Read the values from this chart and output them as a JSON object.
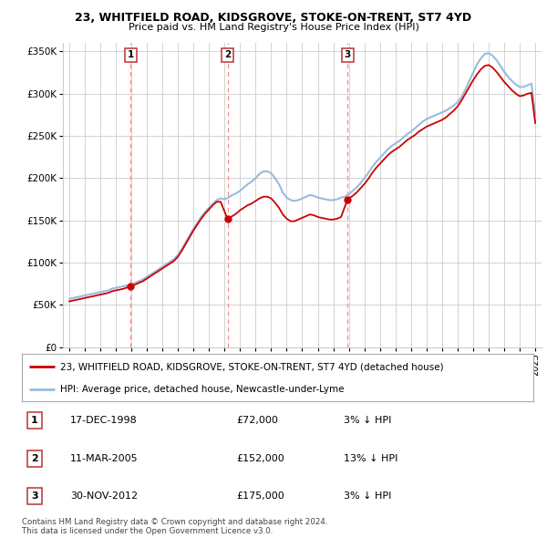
{
  "title": "23, WHITFIELD ROAD, KIDSGROVE, STOKE-ON-TRENT, ST7 4YD",
  "subtitle": "Price paid vs. HM Land Registry's House Price Index (HPI)",
  "ylabel_ticks": [
    "£0",
    "£50K",
    "£100K",
    "£150K",
    "£200K",
    "£250K",
    "£300K",
    "£350K"
  ],
  "ytick_values": [
    0,
    50000,
    100000,
    150000,
    200000,
    250000,
    300000,
    350000
  ],
  "ylim": [
    0,
    360000
  ],
  "sale_prices": [
    72000,
    152000,
    175000
  ],
  "sale_labels": [
    "1",
    "2",
    "3"
  ],
  "sale_hpi_pct": [
    "3% ↓ HPI",
    "13% ↓ HPI",
    "3% ↓ HPI"
  ],
  "sale_date_labels": [
    "17-DEC-1998",
    "11-MAR-2005",
    "30-NOV-2012"
  ],
  "sale_price_labels": [
    "£72,000",
    "£152,000",
    "£175,000"
  ],
  "legend_property": "23, WHITFIELD ROAD, KIDSGROVE, STOKE-ON-TRENT, ST7 4YD (detached house)",
  "legend_hpi": "HPI: Average price, detached house, Newcastle-under-Lyme",
  "footer1": "Contains HM Land Registry data © Crown copyright and database right 2024.",
  "footer2": "This data is licensed under the Open Government Licence v3.0.",
  "property_color": "#cc0000",
  "hpi_color": "#99bbdd",
  "background_color": "#ffffff",
  "grid_color": "#cccccc",
  "dashed_line_color": "#ff8888",
  "sale_years": [
    1998.96,
    2005.19,
    2012.92
  ],
  "hpi_x": [
    1995.0,
    1995.25,
    1995.5,
    1995.75,
    1996.0,
    1996.25,
    1996.5,
    1996.75,
    1997.0,
    1997.25,
    1997.5,
    1997.75,
    1998.0,
    1998.25,
    1998.5,
    1998.75,
    1999.0,
    1999.25,
    1999.5,
    1999.75,
    2000.0,
    2000.25,
    2000.5,
    2000.75,
    2001.0,
    2001.25,
    2001.5,
    2001.75,
    2002.0,
    2002.25,
    2002.5,
    2002.75,
    2003.0,
    2003.25,
    2003.5,
    2003.75,
    2004.0,
    2004.25,
    2004.5,
    2004.75,
    2005.0,
    2005.25,
    2005.5,
    2005.75,
    2006.0,
    2006.25,
    2006.5,
    2006.75,
    2007.0,
    2007.25,
    2007.5,
    2007.75,
    2008.0,
    2008.25,
    2008.5,
    2008.75,
    2009.0,
    2009.25,
    2009.5,
    2009.75,
    2010.0,
    2010.25,
    2010.5,
    2010.75,
    2011.0,
    2011.25,
    2011.5,
    2011.75,
    2012.0,
    2012.25,
    2012.5,
    2012.75,
    2013.0,
    2013.25,
    2013.5,
    2013.75,
    2014.0,
    2014.25,
    2014.5,
    2014.75,
    2015.0,
    2015.25,
    2015.5,
    2015.75,
    2016.0,
    2016.25,
    2016.5,
    2016.75,
    2017.0,
    2017.25,
    2017.5,
    2017.75,
    2018.0,
    2018.25,
    2018.5,
    2018.75,
    2019.0,
    2019.25,
    2019.5,
    2019.75,
    2020.0,
    2020.25,
    2020.5,
    2020.75,
    2021.0,
    2021.25,
    2021.5,
    2021.75,
    2022.0,
    2022.25,
    2022.5,
    2022.75,
    2023.0,
    2023.25,
    2023.5,
    2023.75,
    2024.0,
    2024.25,
    2024.5,
    2024.75,
    2025.0
  ],
  "hpi_y": [
    57000,
    58000,
    59000,
    60000,
    61000,
    62000,
    63000,
    64000,
    65000,
    66000,
    67000,
    69000,
    70000,
    71000,
    72000,
    73000,
    74000,
    76000,
    78000,
    80000,
    83000,
    86000,
    89000,
    92000,
    95000,
    98000,
    101000,
    104000,
    109000,
    116000,
    124000,
    132000,
    140000,
    147000,
    154000,
    160000,
    165000,
    170000,
    174000,
    176000,
    175000,
    177000,
    180000,
    182000,
    185000,
    189000,
    193000,
    196000,
    200000,
    205000,
    208000,
    208000,
    206000,
    200000,
    193000,
    183000,
    177000,
    174000,
    173000,
    174000,
    176000,
    178000,
    180000,
    179000,
    177000,
    176000,
    175000,
    174000,
    174000,
    175000,
    177000,
    178000,
    181000,
    185000,
    189000,
    194000,
    200000,
    206000,
    213000,
    219000,
    224000,
    229000,
    234000,
    238000,
    241000,
    244000,
    248000,
    252000,
    255000,
    259000,
    263000,
    267000,
    270000,
    272000,
    274000,
    276000,
    278000,
    280000,
    283000,
    286000,
    290000,
    296000,
    305000,
    315000,
    325000,
    335000,
    342000,
    347000,
    348000,
    345000,
    340000,
    333000,
    326000,
    320000,
    315000,
    311000,
    308000,
    308000,
    310000,
    312000,
    275000
  ],
  "prop_x": [
    1995.0,
    1995.25,
    1995.5,
    1995.75,
    1996.0,
    1996.25,
    1996.5,
    1996.75,
    1997.0,
    1997.25,
    1997.5,
    1997.75,
    1998.0,
    1998.25,
    1998.5,
    1998.96,
    1999.25,
    1999.5,
    1999.75,
    2000.0,
    2000.25,
    2000.5,
    2000.75,
    2001.0,
    2001.25,
    2001.5,
    2001.75,
    2002.0,
    2002.25,
    2002.5,
    2002.75,
    2003.0,
    2003.25,
    2003.5,
    2003.75,
    2004.0,
    2004.25,
    2004.5,
    2004.75,
    2005.19,
    2005.5,
    2005.75,
    2006.0,
    2006.25,
    2006.5,
    2006.75,
    2007.0,
    2007.25,
    2007.5,
    2007.75,
    2008.0,
    2008.25,
    2008.5,
    2008.75,
    2009.0,
    2009.25,
    2009.5,
    2009.75,
    2010.0,
    2010.25,
    2010.5,
    2010.75,
    2011.0,
    2011.25,
    2011.5,
    2011.75,
    2012.0,
    2012.25,
    2012.5,
    2012.92,
    2013.25,
    2013.5,
    2013.75,
    2014.0,
    2014.25,
    2014.5,
    2014.75,
    2015.0,
    2015.25,
    2015.5,
    2015.75,
    2016.0,
    2016.25,
    2016.5,
    2016.75,
    2017.0,
    2017.25,
    2017.5,
    2017.75,
    2018.0,
    2018.25,
    2018.5,
    2018.75,
    2019.0,
    2019.25,
    2019.5,
    2019.75,
    2020.0,
    2020.25,
    2020.5,
    2020.75,
    2021.0,
    2021.25,
    2021.5,
    2021.75,
    2022.0,
    2022.25,
    2022.5,
    2022.75,
    2023.0,
    2023.25,
    2023.5,
    2023.75,
    2024.0,
    2024.25,
    2024.5,
    2024.75,
    2025.0
  ],
  "prop_y": [
    54000,
    55000,
    56000,
    57000,
    58000,
    59000,
    60000,
    61000,
    62000,
    63000,
    64000,
    66000,
    67000,
    68000,
    69000,
    72000,
    74000,
    76000,
    78000,
    81000,
    84000,
    87000,
    90000,
    93000,
    96000,
    99000,
    102000,
    107000,
    114000,
    122000,
    130000,
    138000,
    145000,
    152000,
    158000,
    163000,
    168000,
    172000,
    172000,
    152000,
    155000,
    158000,
    162000,
    165000,
    168000,
    170000,
    173000,
    176000,
    178000,
    178000,
    176000,
    171000,
    165000,
    157000,
    152000,
    149000,
    149000,
    151000,
    153000,
    155000,
    157000,
    156000,
    154000,
    153000,
    152000,
    151000,
    151000,
    152000,
    154000,
    175000,
    179000,
    183000,
    188000,
    193000,
    199000,
    206000,
    212000,
    217000,
    222000,
    227000,
    231000,
    234000,
    237000,
    241000,
    245000,
    248000,
    251000,
    255000,
    258000,
    261000,
    263000,
    265000,
    267000,
    269000,
    272000,
    276000,
    280000,
    285000,
    292000,
    300000,
    308000,
    316000,
    323000,
    329000,
    333000,
    334000,
    331000,
    326000,
    320000,
    314000,
    309000,
    304000,
    300000,
    297000,
    298000,
    300000,
    301000,
    265000
  ],
  "x_tick_years": [
    1995,
    1996,
    1997,
    1998,
    1999,
    2000,
    2001,
    2002,
    2003,
    2004,
    2005,
    2006,
    2007,
    2008,
    2009,
    2010,
    2011,
    2012,
    2013,
    2014,
    2015,
    2016,
    2017,
    2018,
    2019,
    2020,
    2021,
    2022,
    2023,
    2024,
    2025
  ]
}
